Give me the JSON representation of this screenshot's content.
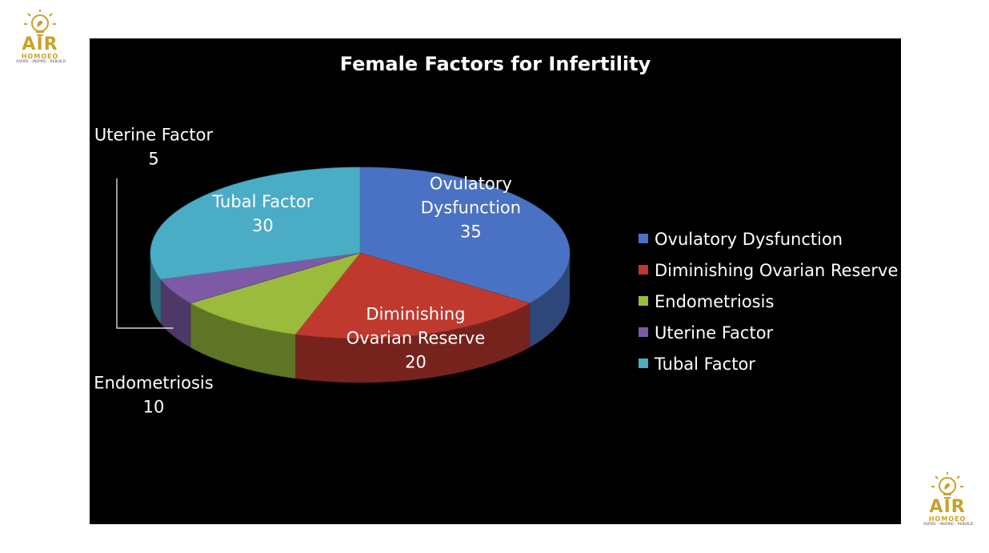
{
  "logo": {
    "brand": "AIR",
    "sub": "HOMOEO",
    "tagline": "ASPIRE - INSPIRE - REBUILD",
    "color": "#c9a227"
  },
  "chart_data": {
    "type": "pie",
    "title": "Female Factors for Infertility",
    "categories": [
      "Ovulatory Dysfunction",
      "Diminishing Ovarian Reserve",
      "Endometriosis",
      "Uterine Factor",
      "Tubal Factor"
    ],
    "values": [
      35,
      20,
      10,
      5,
      30
    ],
    "colors": [
      "#4a72c4",
      "#c0392f",
      "#9bbb3c",
      "#7d5aa6",
      "#4bacc6"
    ],
    "legend_position": "right",
    "three_d": true,
    "slice_labels": [
      {
        "lines": [
          "Ovulatory",
          "Dysfunction"
        ],
        "value": "35"
      },
      {
        "lines": [
          "Diminishing",
          "Ovarian Reserve"
        ],
        "value": "20"
      },
      {
        "lines": [
          "Endometriosis"
        ],
        "value": "10"
      },
      {
        "lines": [
          "Uterine Factor"
        ],
        "value": "5"
      },
      {
        "lines": [
          "Tubal Factor"
        ],
        "value": "30"
      }
    ]
  }
}
